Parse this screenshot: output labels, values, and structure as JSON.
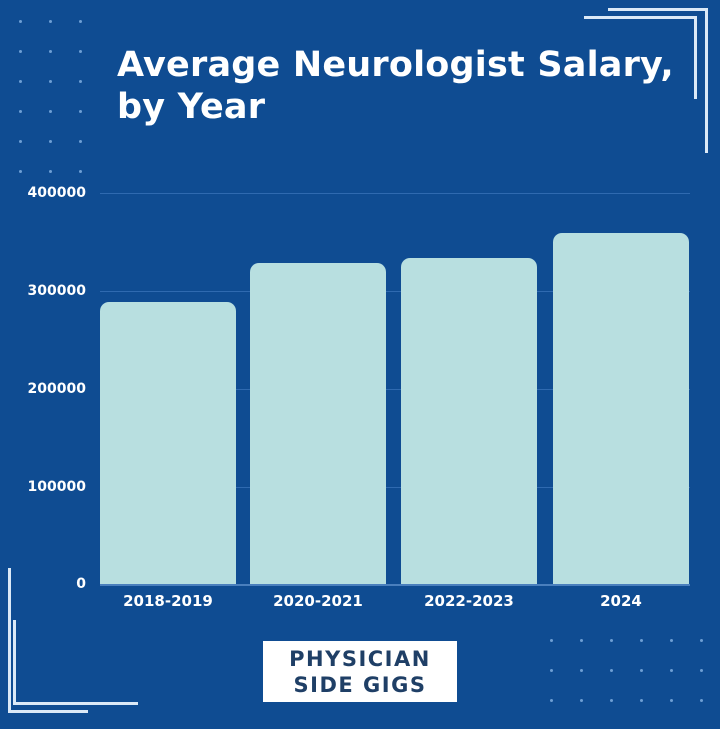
{
  "title_line1": "Average Neurologist Salary,",
  "title_line2": "by Year",
  "colors": {
    "background": "#0f4c92",
    "bar": "#b8dfe0",
    "text": "#ffffff",
    "logo_text": "#1f3f66",
    "logo_bg": "#ffffff"
  },
  "y_axis": {
    "ticks": [
      "400000",
      "300000",
      "200000",
      "100000",
      "0"
    ]
  },
  "x_axis": {
    "labels": [
      "2018-2019",
      "2020-2021",
      "2022-2023",
      "2024"
    ]
  },
  "logo": {
    "line1": "PHYSICIAN",
    "line2": "SIDE GIGS"
  },
  "chart_data": {
    "type": "bar",
    "title": "Average Neurologist Salary, by Year",
    "categories": [
      "2018-2019",
      "2020-2021",
      "2022-2023",
      "2024"
    ],
    "values": [
      288000,
      328000,
      334000,
      359000
    ],
    "xlabel": "",
    "ylabel": "",
    "ylim": [
      0,
      400000
    ],
    "yticks": [
      0,
      100000,
      200000,
      300000,
      400000
    ],
    "grid": true,
    "legend": "none"
  }
}
